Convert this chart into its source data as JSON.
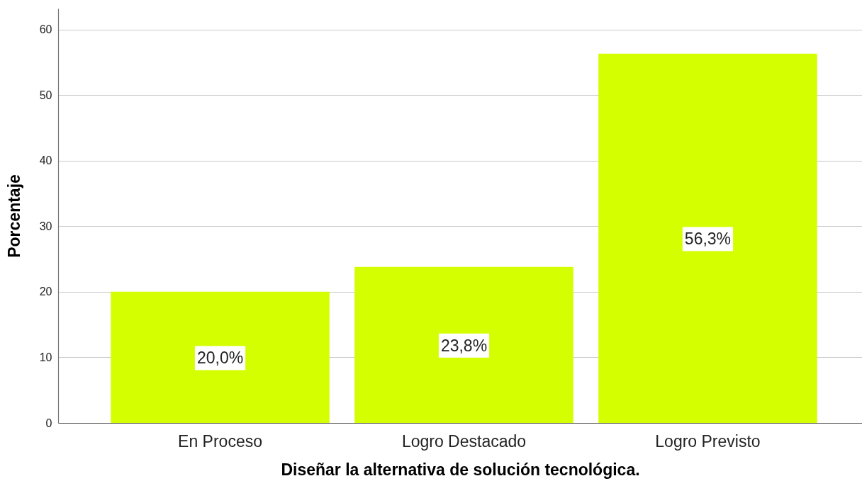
{
  "chart_data": {
    "type": "bar",
    "categories": [
      "En Proceso",
      "Logro Destacado",
      "Logro Previsto"
    ],
    "values": [
      20.0,
      23.8,
      56.3
    ],
    "color": "#d4ff00",
    "xlabel": "Diseñar la alternativa de solución tecnológica.",
    "ylabel": "Porcentaje",
    "ylim": [
      0,
      63.2
    ],
    "yticks": [
      0,
      10,
      20,
      30,
      40,
      50,
      60
    ],
    "grid": "y",
    "value_labels": [
      "20,0%",
      "23,8%",
      "56,3%"
    ]
  }
}
